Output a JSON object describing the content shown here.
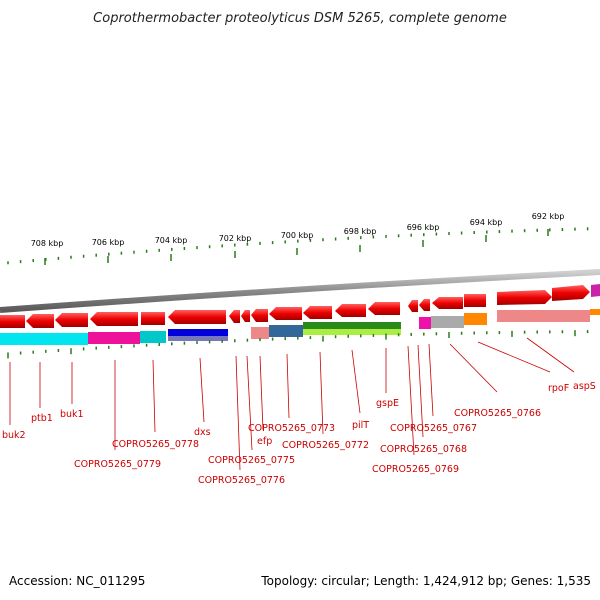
{
  "title": "Coprothermobacter proteolyticus DSM 5265, complete genome",
  "accession": "Accession: NC_011295",
  "topology": "Topology: circular; Length: 1,424,912 bp; Genes: 1,535",
  "kbp_labels": [
    "708 kbp",
    "706 kbp",
    "704 kbp",
    "702 kbp",
    "700 kbp",
    "698 kbp",
    "696 kbp",
    "694 kbp",
    "692 kbp"
  ],
  "gene_labels": [
    "buk2",
    "ptb1",
    "buk1",
    "COPRO5265_0779",
    "COPRO5265_0778",
    "dxs",
    "COPRO5265_0776",
    "COPRO5265_0775",
    "efp",
    "COPRO5265_0773",
    "COPRO5265_0772",
    "pilT",
    "gspE",
    "COPRO5265_0769",
    "COPRO5265_0768",
    "COPRO5265_0767",
    "COPRO5265_0766",
    "rpoF",
    "aspS"
  ],
  "colors": {
    "gene_arrow": "#e00000",
    "backbone": "#888888",
    "tick": "#2a7a1a",
    "label": "#cc0000"
  }
}
